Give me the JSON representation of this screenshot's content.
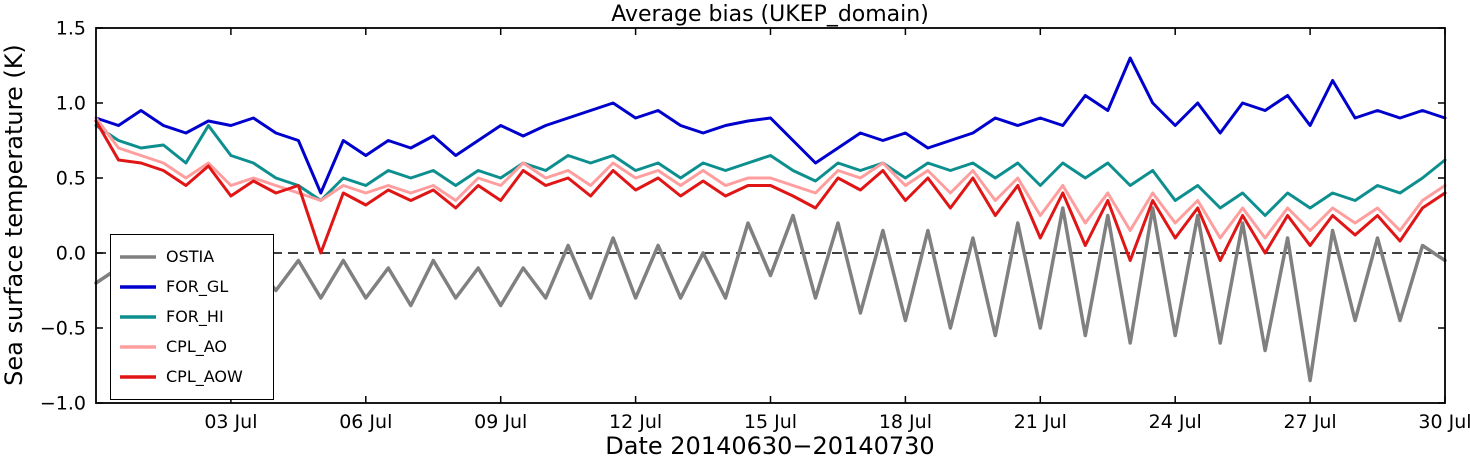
{
  "figure": {
    "background": "#ffffff",
    "axis_color": "#000000"
  },
  "chart_data": {
    "type": "line",
    "title": "Average bias (UKEP_domain)",
    "xlabel": "Date 20140630−20140730",
    "ylabel": "Sea surface temperature (K)",
    "xlim": [
      0,
      30
    ],
    "ylim": [
      -1.0,
      1.5
    ],
    "x_unit": "days since 2014-06-30",
    "grid": false,
    "legend_position": "upper-left-inside",
    "zero_line": {
      "y": 0.0,
      "style": "dashed",
      "color": "#000000"
    },
    "xticks": {
      "positions": [
        3,
        6,
        9,
        12,
        15,
        18,
        21,
        24,
        27,
        30
      ],
      "labels": [
        "03 Jul",
        "06 Jul",
        "09 Jul",
        "12 Jul",
        "15 Jul",
        "18 Jul",
        "21 Jul",
        "24 Jul",
        "27 Jul",
        "30 Jul"
      ]
    },
    "yticks": {
      "positions": [
        -1.0,
        -0.5,
        0.0,
        0.5,
        1.0,
        1.5
      ],
      "labels": [
        "−1.0",
        "−0.5",
        "0.0",
        "0.5",
        "1.0",
        "1.5"
      ]
    },
    "x": [
      0,
      0.5,
      1,
      1.5,
      2,
      2.5,
      3,
      3.5,
      4,
      4.5,
      5,
      5.5,
      6,
      6.5,
      7,
      7.5,
      8,
      8.5,
      9,
      9.5,
      10,
      10.5,
      11,
      11.5,
      12,
      12.5,
      13,
      13.5,
      14,
      14.5,
      15,
      15.5,
      16,
      16.5,
      17,
      17.5,
      18,
      18.5,
      19,
      19.5,
      20,
      20.5,
      21,
      21.5,
      22,
      22.5,
      23,
      23.5,
      24,
      24.5,
      25,
      25.5,
      26,
      26.5,
      27,
      27.5,
      28,
      28.5,
      29,
      29.5,
      30
    ],
    "series": [
      {
        "name": "OSTIA",
        "color": "#808080",
        "values": [
          -0.2,
          -0.1,
          -0.3,
          -0.05,
          -0.35,
          -0.1,
          -0.3,
          -0.05,
          -0.25,
          -0.05,
          -0.3,
          -0.05,
          -0.3,
          -0.1,
          -0.35,
          -0.05,
          -0.3,
          -0.1,
          -0.35,
          -0.1,
          -0.3,
          0.05,
          -0.3,
          0.1,
          -0.3,
          0.05,
          -0.3,
          0.0,
          -0.3,
          0.2,
          -0.15,
          0.25,
          -0.3,
          0.2,
          -0.4,
          0.15,
          -0.45,
          0.15,
          -0.5,
          0.1,
          -0.55,
          0.2,
          -0.5,
          0.3,
          -0.55,
          0.25,
          -0.6,
          0.3,
          -0.55,
          0.25,
          -0.6,
          0.2,
          -0.65,
          0.1,
          -0.85,
          0.15,
          -0.45,
          0.1,
          -0.45,
          0.05,
          -0.05
        ]
      },
      {
        "name": "FOR_GL",
        "color": "#0000cd",
        "values": [
          0.9,
          0.85,
          0.95,
          0.85,
          0.8,
          0.88,
          0.85,
          0.9,
          0.8,
          0.75,
          0.4,
          0.75,
          0.65,
          0.75,
          0.7,
          0.78,
          0.65,
          0.75,
          0.85,
          0.78,
          0.85,
          0.9,
          0.95,
          1.0,
          0.9,
          0.95,
          0.85,
          0.8,
          0.85,
          0.88,
          0.9,
          0.75,
          0.6,
          0.7,
          0.8,
          0.75,
          0.8,
          0.7,
          0.75,
          0.8,
          0.9,
          0.85,
          0.9,
          0.85,
          1.05,
          0.95,
          1.3,
          1.0,
          0.85,
          1.0,
          0.8,
          1.0,
          0.95,
          1.05,
          0.85,
          1.15,
          0.9,
          0.95,
          0.9,
          0.95,
          0.9
        ]
      },
      {
        "name": "FOR_HI",
        "color": "#0e8f8f",
        "values": [
          0.85,
          0.75,
          0.7,
          0.72,
          0.6,
          0.85,
          0.65,
          0.6,
          0.5,
          0.45,
          0.35,
          0.5,
          0.45,
          0.55,
          0.5,
          0.55,
          0.45,
          0.55,
          0.5,
          0.6,
          0.55,
          0.65,
          0.6,
          0.65,
          0.55,
          0.6,
          0.5,
          0.6,
          0.55,
          0.6,
          0.65,
          0.55,
          0.48,
          0.6,
          0.55,
          0.6,
          0.5,
          0.6,
          0.55,
          0.6,
          0.5,
          0.6,
          0.45,
          0.6,
          0.5,
          0.6,
          0.45,
          0.55,
          0.35,
          0.45,
          0.3,
          0.4,
          0.25,
          0.4,
          0.3,
          0.4,
          0.35,
          0.45,
          0.4,
          0.5,
          0.62
        ]
      },
      {
        "name": "CPL_AO",
        "color": "#ff9e9e",
        "values": [
          0.9,
          0.7,
          0.65,
          0.6,
          0.5,
          0.6,
          0.45,
          0.5,
          0.45,
          0.4,
          0.35,
          0.45,
          0.4,
          0.45,
          0.4,
          0.45,
          0.35,
          0.5,
          0.45,
          0.6,
          0.5,
          0.55,
          0.45,
          0.6,
          0.5,
          0.55,
          0.45,
          0.55,
          0.45,
          0.5,
          0.5,
          0.45,
          0.4,
          0.55,
          0.5,
          0.6,
          0.45,
          0.55,
          0.4,
          0.55,
          0.35,
          0.5,
          0.25,
          0.45,
          0.2,
          0.4,
          0.15,
          0.4,
          0.2,
          0.35,
          0.1,
          0.3,
          0.1,
          0.3,
          0.15,
          0.3,
          0.2,
          0.3,
          0.15,
          0.35,
          0.45
        ]
      },
      {
        "name": "CPL_AOW",
        "color": "#e01515",
        "values": [
          0.88,
          0.62,
          0.6,
          0.55,
          0.45,
          0.58,
          0.38,
          0.48,
          0.4,
          0.45,
          0.0,
          0.4,
          0.32,
          0.42,
          0.35,
          0.42,
          0.3,
          0.45,
          0.35,
          0.55,
          0.45,
          0.5,
          0.38,
          0.55,
          0.42,
          0.5,
          0.38,
          0.48,
          0.38,
          0.45,
          0.45,
          0.38,
          0.3,
          0.5,
          0.42,
          0.55,
          0.35,
          0.5,
          0.3,
          0.5,
          0.25,
          0.45,
          0.1,
          0.4,
          0.05,
          0.35,
          -0.05,
          0.35,
          0.1,
          0.3,
          -0.05,
          0.25,
          0.0,
          0.25,
          0.05,
          0.25,
          0.12,
          0.25,
          0.08,
          0.3,
          0.4
        ]
      }
    ]
  }
}
